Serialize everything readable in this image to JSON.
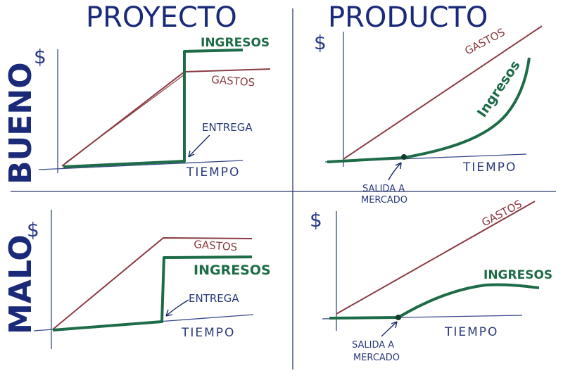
{
  "columns": {
    "left": "PROYECTO",
    "right": "PRODUCTO"
  },
  "rows": {
    "top": "BUENO",
    "bottom": "MALO"
  },
  "axis_symbol": "$",
  "labels": {
    "ingresos": "INGRESOS",
    "ingresos_product_good": "Ingresos",
    "gastos": "GASTOS",
    "entrega": "ENTREGA",
    "tiempo": "TIEMPO",
    "salida_line1": "SALIDA A",
    "salida_line2": "MERCADO"
  },
  "colors": {
    "heading": "#1a2a78",
    "ingresos": "#1e6b48",
    "gastos": "#8a3c44",
    "axis": "#3a4a8a"
  }
}
